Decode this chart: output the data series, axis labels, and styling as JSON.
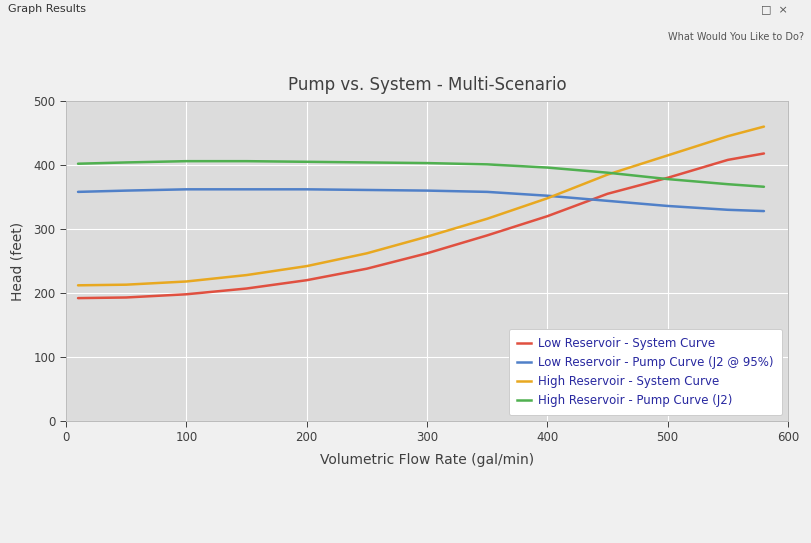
{
  "title": "Pump vs. System - Multi-Scenario",
  "xlabel": "Volumetric Flow Rate (gal/min)",
  "ylabel": "Head (feet)",
  "xlim": [
    0,
    600
  ],
  "ylim": [
    0,
    500
  ],
  "xticks": [
    0,
    100,
    200,
    300,
    400,
    500,
    600
  ],
  "yticks": [
    0,
    100,
    200,
    300,
    400,
    500
  ],
  "plot_bg_color": "#dcdcdc",
  "window_bg_color": "#f0f0f0",
  "orange_border_color": "#e8a020",
  "white_inner_color": "#ffffff",
  "grid_color": "#ffffff",
  "title_color": "#404040",
  "axis_label_color": "#404040",
  "tick_color": "#404040",
  "legend_text_color": "#2828a0",
  "curves": {
    "low_sys": {
      "label": "Low Reservoir - System Curve",
      "color": "#e05040",
      "x": [
        10,
        50,
        100,
        150,
        200,
        250,
        300,
        350,
        400,
        450,
        500,
        550,
        580
      ],
      "y": [
        192,
        193,
        198,
        207,
        220,
        238,
        262,
        290,
        320,
        355,
        380,
        408,
        418
      ]
    },
    "low_pump": {
      "label": "Low Reservoir - Pump Curve (J2 @ 95%)",
      "color": "#5080c8",
      "x": [
        10,
        50,
        100,
        150,
        200,
        250,
        300,
        350,
        400,
        450,
        500,
        550,
        580
      ],
      "y": [
        358,
        360,
        362,
        362,
        362,
        361,
        360,
        358,
        352,
        344,
        336,
        330,
        328
      ]
    },
    "high_sys": {
      "label": "High Reservoir - System Curve",
      "color": "#e8a820",
      "x": [
        10,
        50,
        100,
        150,
        200,
        250,
        300,
        350,
        400,
        450,
        500,
        550,
        580
      ],
      "y": [
        212,
        213,
        218,
        228,
        242,
        262,
        288,
        316,
        348,
        385,
        415,
        445,
        460
      ]
    },
    "high_pump": {
      "label": "High Reservoir - Pump Curve (J2)",
      "color": "#50b050",
      "x": [
        10,
        50,
        100,
        150,
        200,
        250,
        300,
        350,
        400,
        450,
        500,
        550,
        580
      ],
      "y": [
        402,
        404,
        406,
        406,
        405,
        404,
        403,
        401,
        396,
        388,
        378,
        370,
        366
      ]
    }
  },
  "titlebar_text": "Graph Results",
  "titlebar_bg": "#e8e8e8",
  "toolbar_bg": "#f0f0f0",
  "statusbar_bg": "#e8e8e8",
  "figsize": [
    8.12,
    5.43
  ],
  "dpi": 100
}
